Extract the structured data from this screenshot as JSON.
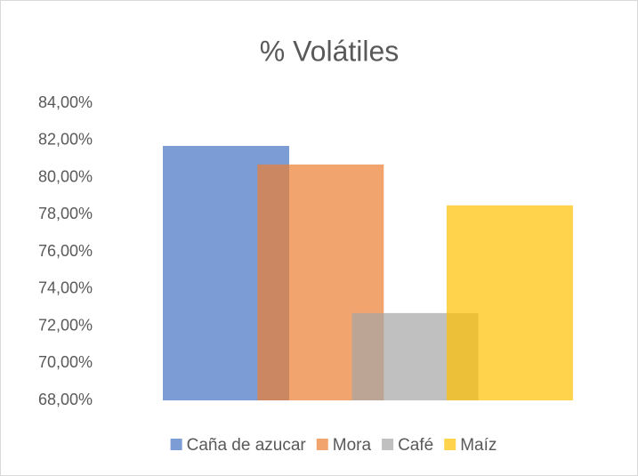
{
  "chart_data": {
    "type": "bar",
    "title": "% Volátiles",
    "categories": [
      null
    ],
    "series": [
      {
        "name": "Caña de azucar",
        "color": "#4472c4",
        "values": [
          81.7
        ]
      },
      {
        "name": "Mora",
        "color": "#ed7d31",
        "values": [
          80.7
        ]
      },
      {
        "name": "Café",
        "color": "#a5a5a5",
        "values": [
          72.7
        ]
      },
      {
        "name": "Maíz",
        "color": "#ffc000",
        "values": [
          78.5
        ]
      }
    ],
    "ylim": [
      68,
      84
    ],
    "yticks": [
      {
        "value": 68,
        "label": "68,00%"
      },
      {
        "value": 70,
        "label": "70,00%"
      },
      {
        "value": 72,
        "label": "72,00%"
      },
      {
        "value": 74,
        "label": "74,00%"
      },
      {
        "value": 76,
        "label": "76,00%"
      },
      {
        "value": 78,
        "label": "78,00%"
      },
      {
        "value": 80,
        "label": "80,00%"
      },
      {
        "value": 82,
        "label": "82,00%"
      },
      {
        "value": 84,
        "label": "84,00%"
      }
    ],
    "grid": false,
    "legend": "bottom"
  }
}
